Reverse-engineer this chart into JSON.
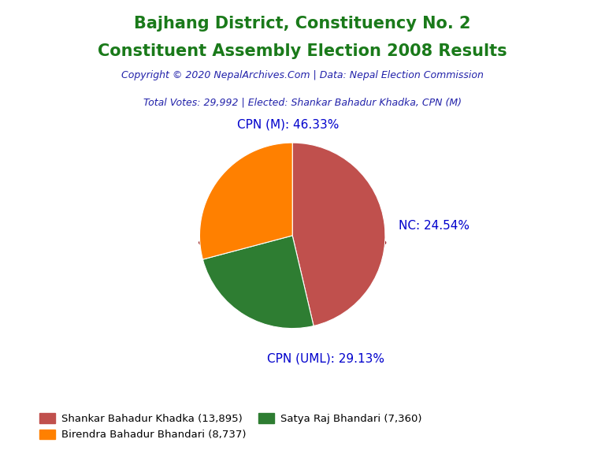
{
  "title_line1": "Bajhang District, Constituency No. 2",
  "title_line2": "Constituent Assembly Election 2008 Results",
  "title_color": "#1a7a1a",
  "copyright_text": "Copyright © 2020 NepalArchives.Com | Data: Nepal Election Commission",
  "copyright_color": "#2222aa",
  "total_votes_text": "Total Votes: 29,992 | Elected: Shankar Bahadur Khadka, CPN (M)",
  "total_votes_color": "#2222aa",
  "slices": [
    {
      "label": "CPN (M): 46.33%",
      "value": 13895,
      "color": "#c0504d",
      "party": "CPN (M)",
      "pct": 46.33
    },
    {
      "label": "NC: 24.54%",
      "value": 7360,
      "color": "#2e7d32",
      "party": "NC",
      "pct": 24.54
    },
    {
      "label": "CPN (UML): 29.13%",
      "value": 8737,
      "color": "#ff8000",
      "party": "CPN (UML)",
      "pct": 29.13
    }
  ],
  "legend_entries": [
    {
      "label": "Shankar Bahadur Khadka (13,895)",
      "color": "#c0504d"
    },
    {
      "label": "Birendra Bahadur Bhandari (8,737)",
      "color": "#ff8000"
    },
    {
      "label": "Satya Raj Bhandari (7,360)",
      "color": "#2e7d32"
    }
  ],
  "label_color": "#0000cc",
  "background_color": "#ffffff",
  "shadow_color": "#8b0000",
  "title_fontsize": 15,
  "label_fontsize": 11,
  "legend_fontsize": 9.5
}
